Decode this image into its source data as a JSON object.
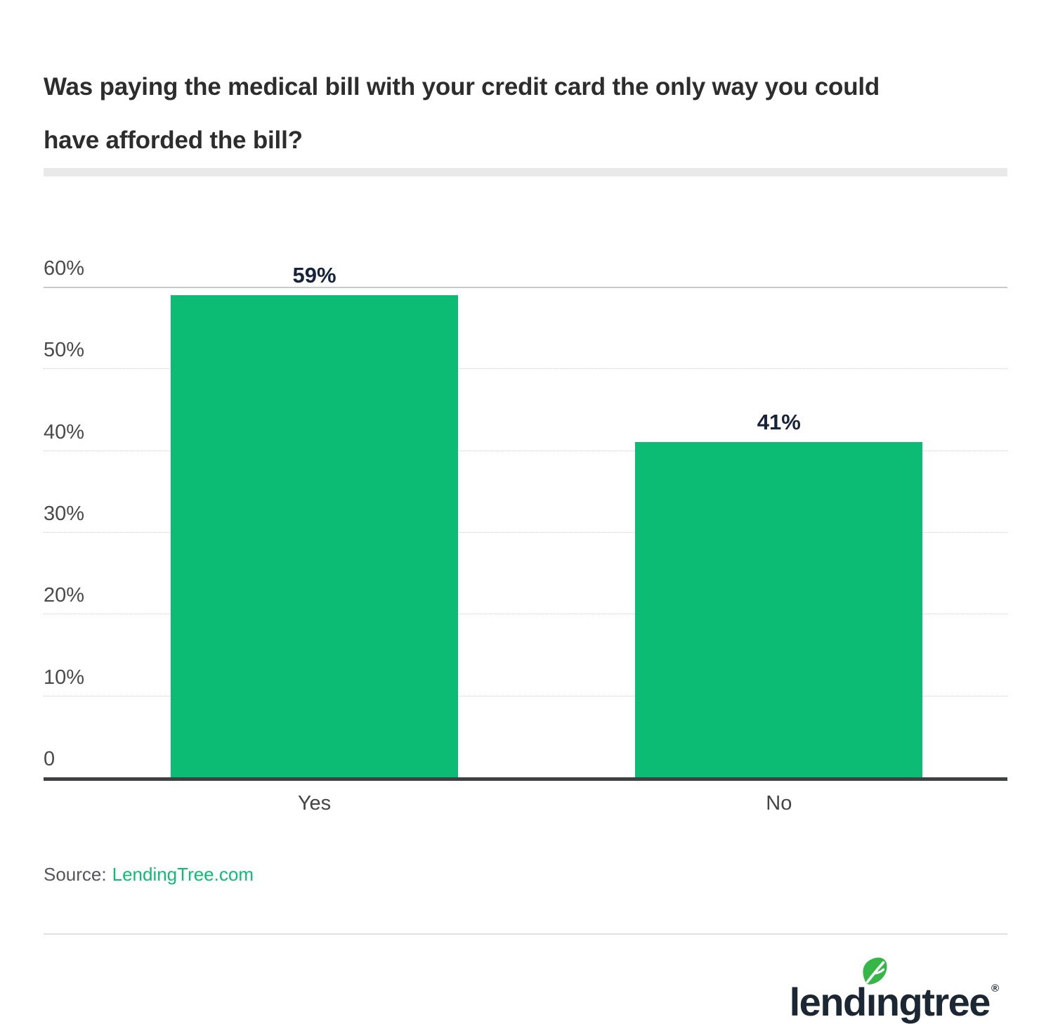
{
  "header": {
    "title": "Was paying the medical bill with your credit card the only way you could have afforded the bill?",
    "title_line1": "Was paying the medical bill with your credit card the only way you could",
    "title_line2": "have afforded the bill?"
  },
  "chart_data": {
    "type": "bar",
    "title": "Was paying the medical bill with your credit card the only way you could have afforded the bill?",
    "categories": [
      "Yes",
      "No"
    ],
    "values": [
      59,
      41
    ],
    "value_labels": [
      "59%",
      "41%"
    ],
    "yticks": [
      {
        "value": 60,
        "label": "60%"
      },
      {
        "value": 50,
        "label": "50%"
      },
      {
        "value": 40,
        "label": "40%"
      },
      {
        "value": 30,
        "label": "30%"
      },
      {
        "value": 20,
        "label": "20%"
      },
      {
        "value": 10,
        "label": "10%"
      },
      {
        "value": 0,
        "label": "0"
      }
    ],
    "ylim": [
      0,
      60
    ],
    "xlabel": "",
    "ylabel": "",
    "grid": true,
    "legend_position": "none",
    "bar_color": "#0cbc74"
  },
  "source": {
    "prefix": "Source:",
    "link_text": "LendingTree.com",
    "link_color": "#0ebc74"
  },
  "logo": {
    "text": "lendingtree",
    "registered_mark": "®",
    "leaf_icon": "leaf",
    "leaf_color": "#35b748",
    "text_color": "#1b2732"
  }
}
